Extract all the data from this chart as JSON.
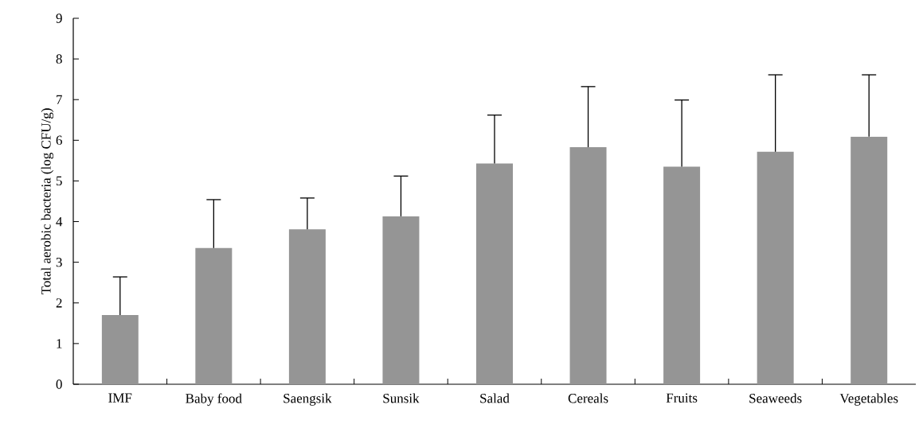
{
  "chart_data": {
    "type": "bar",
    "ylabel": "Total aerobic bacteria (log CFU/g)",
    "categories": [
      "IMF",
      "Baby food",
      "Saengsik",
      "Sunsik",
      "Salad",
      "Cereals",
      "Fruits",
      "Seaweeds",
      "Vegetables"
    ],
    "values": [
      1.7,
      3.35,
      3.81,
      4.13,
      5.43,
      5.83,
      5.35,
      5.72,
      6.09
    ],
    "errors": [
      0.94,
      1.19,
      0.77,
      0.99,
      1.19,
      1.49,
      1.64,
      1.89,
      1.52
    ],
    "color": "#959595",
    "ylim": [
      0,
      9
    ],
    "yticks": [
      0,
      1,
      2,
      3,
      4,
      5,
      6,
      7,
      8,
      9
    ],
    "grid": false
  }
}
